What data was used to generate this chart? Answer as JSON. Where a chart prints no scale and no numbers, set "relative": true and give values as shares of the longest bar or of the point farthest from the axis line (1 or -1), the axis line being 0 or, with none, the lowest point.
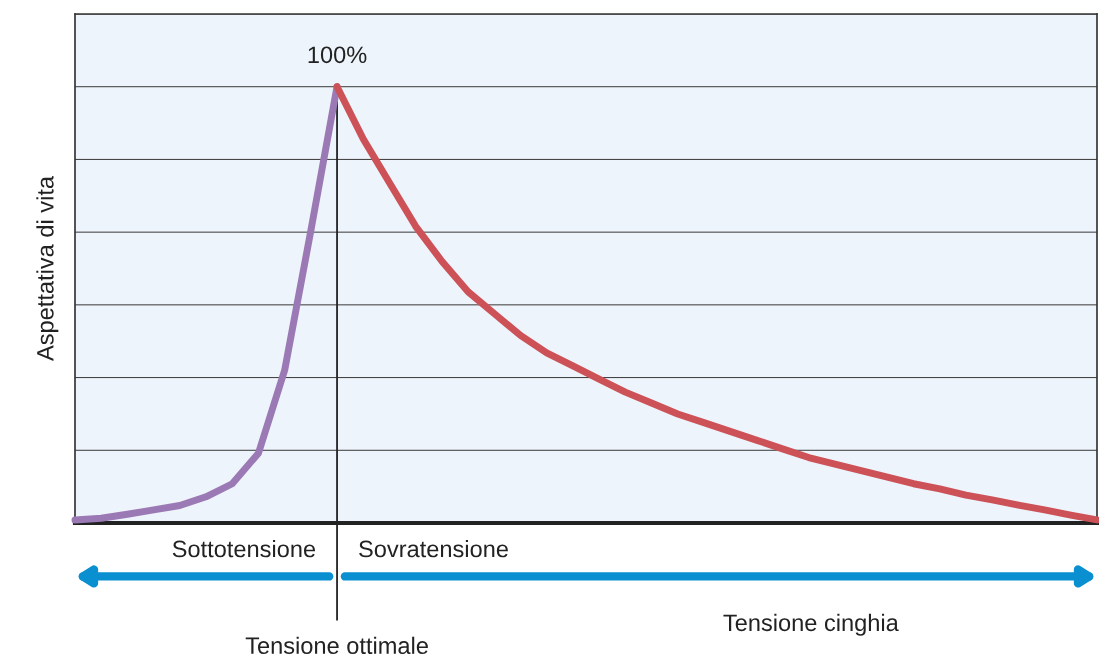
{
  "chart_data": {
    "type": "line",
    "relative": true,
    "ylabel": "Aspettativa di vita",
    "xlabel": "Tensione cinghia",
    "grid": "y",
    "marker": "none",
    "line_style": "solid",
    "categories": [
      null,
      null,
      null,
      null,
      null,
      null,
      null,
      null,
      null,
      null,
      null,
      null,
      null,
      null,
      null,
      null,
      null,
      null,
      null,
      null,
      null,
      null,
      null,
      null,
      null,
      null,
      null,
      null,
      null,
      null,
      null,
      null,
      null,
      null,
      null,
      null,
      null,
      null,
      null,
      null
    ],
    "series": [
      {
        "color": "#9b79b5",
        "values": [
          0.007,
          0.011,
          0.02,
          0.03,
          0.04,
          0.06,
          0.09,
          0.16,
          0.35,
          0.67,
          1,
          null,
          null,
          null,
          null,
          null,
          null,
          null,
          null,
          null,
          null,
          null,
          null,
          null,
          null,
          null,
          null,
          null,
          null,
          null,
          null,
          null,
          null,
          null,
          null,
          null,
          null,
          null,
          null,
          null
        ]
      },
      {
        "color": "#cc5257",
        "values": [
          null,
          null,
          null,
          null,
          null,
          null,
          null,
          null,
          null,
          null,
          1,
          0.88,
          0.78,
          0.68,
          0.6,
          0.53,
          0.48,
          0.43,
          0.39,
          0.36,
          0.33,
          0.3,
          0.275,
          0.25,
          0.23,
          0.21,
          0.19,
          0.17,
          0.15,
          0.135,
          0.12,
          0.105,
          0.09,
          0.078,
          0.064,
          0.053,
          0.041,
          0.03,
          0.018,
          0.007
        ]
      }
    ],
    "ref_lines": [
      {
        "axis": "x",
        "label": "Tensione ottimale",
        "color": "#222222"
      }
    ],
    "annotations": [
      "100%",
      "Sottotensione",
      "Sovratensione"
    ]
  }
}
